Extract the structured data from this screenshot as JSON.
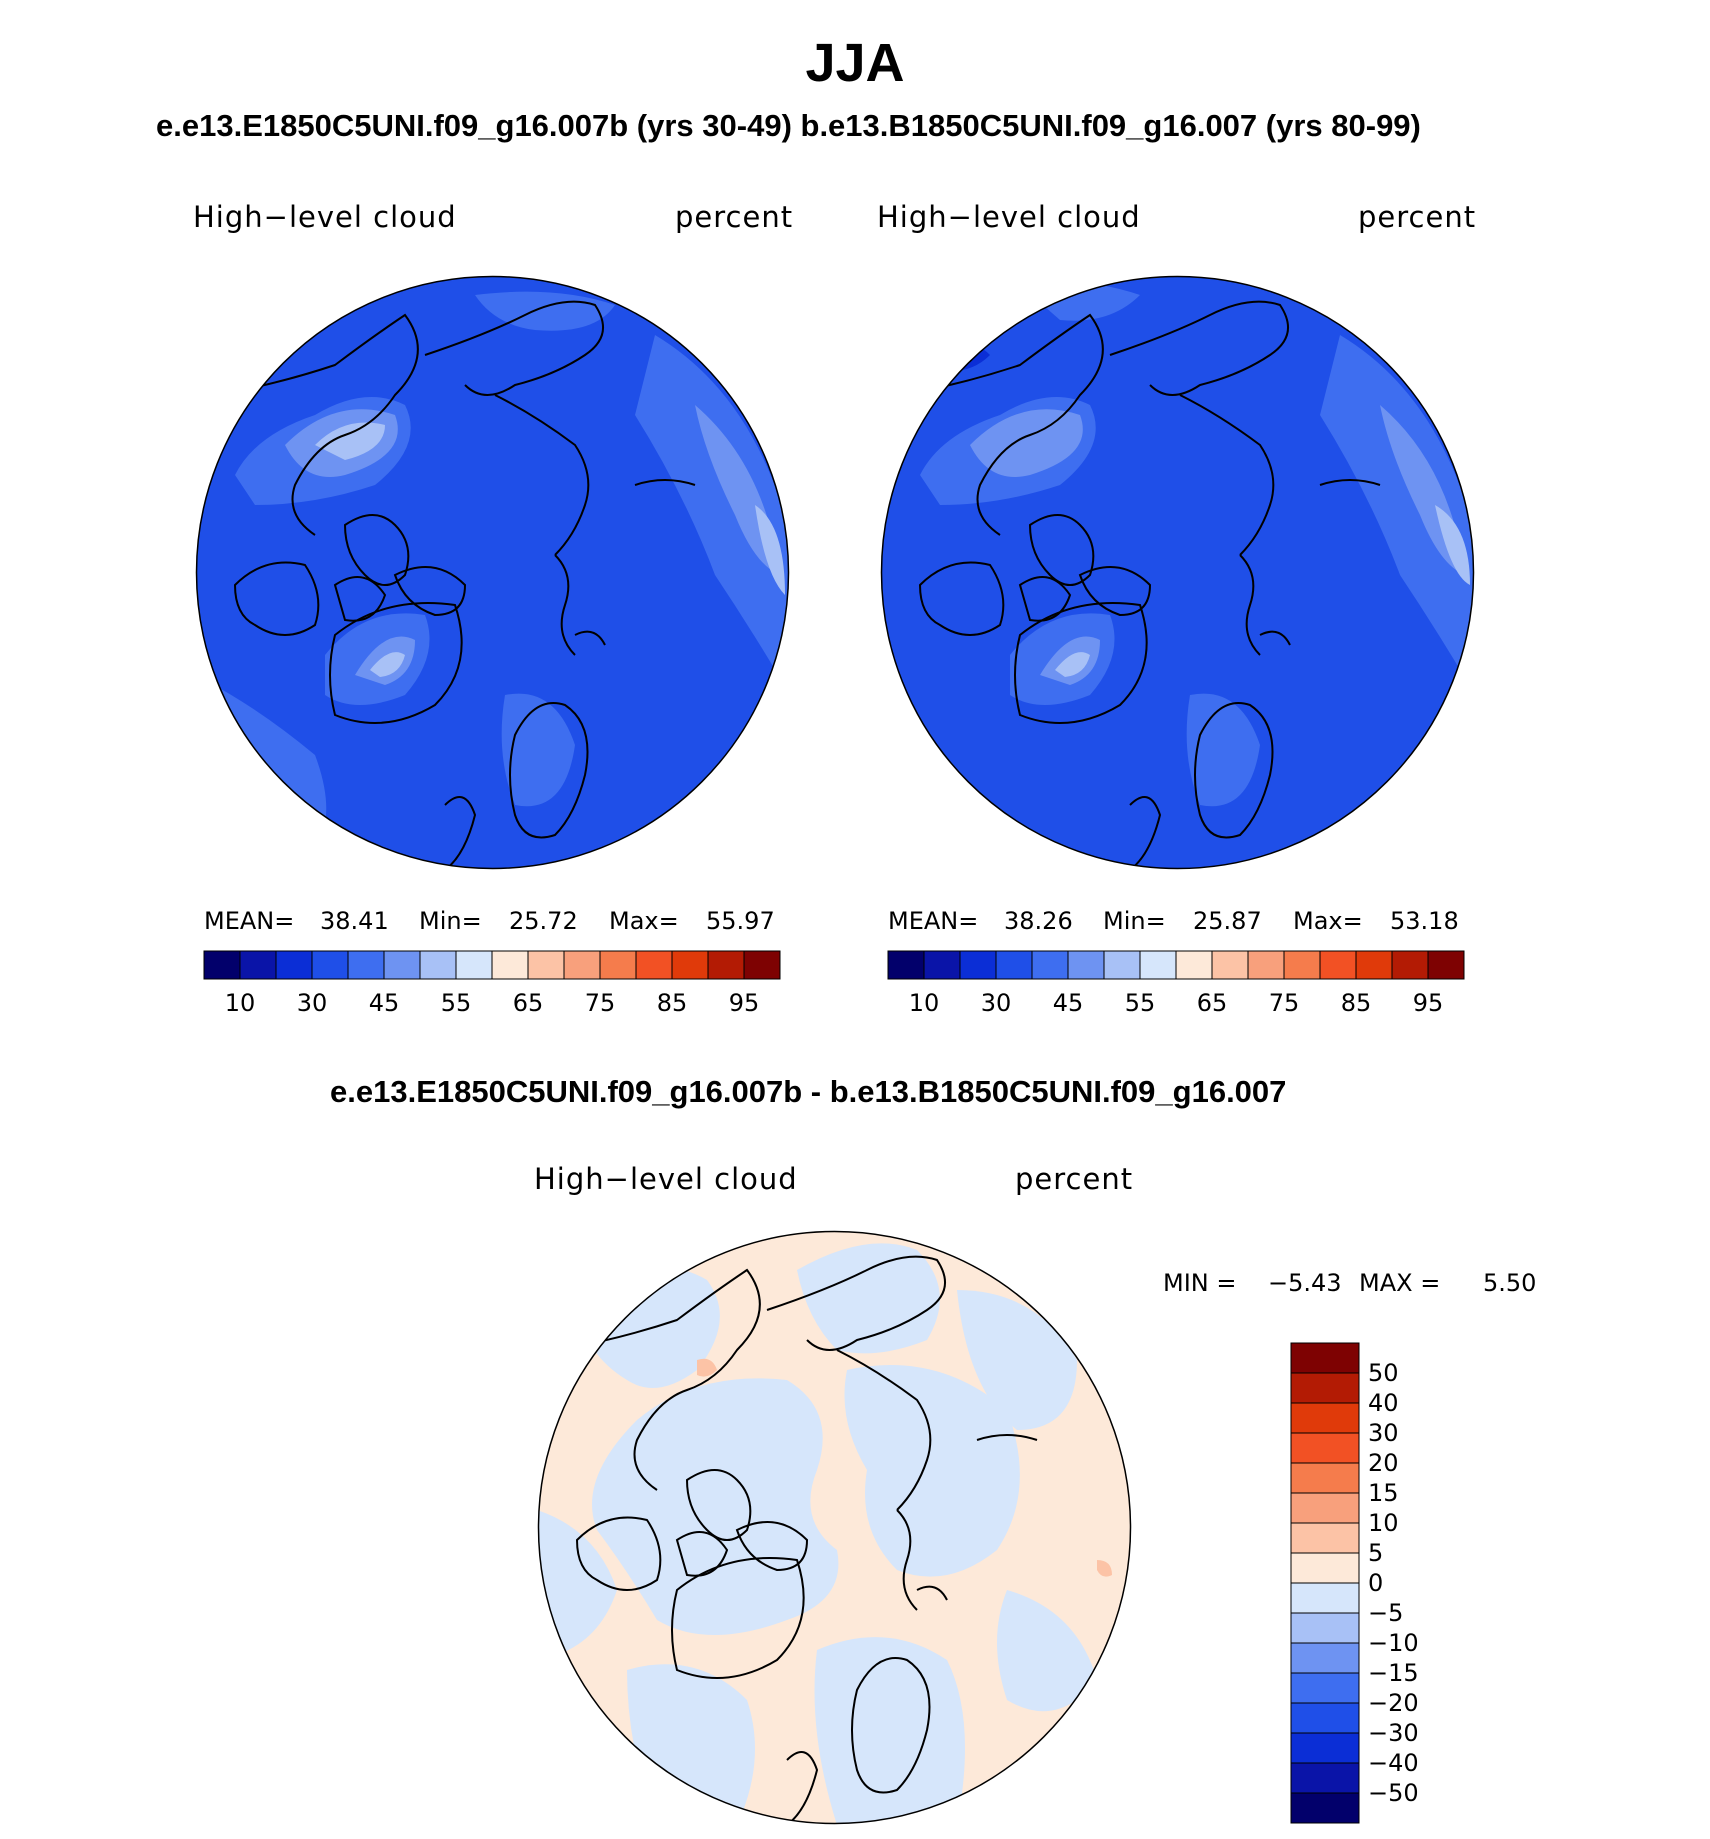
{
  "chart_data": {
    "type": "heatmap",
    "title": "JJA",
    "subtitle": "e.e13.E1850C5UNI.f09_g16.007b (yrs 30-49)  b.e13.B1850C5UNI.f09_g16.007 (yrs 80-99)",
    "diff_title": "e.e13.E1850C5UNI.f09_g16.007b - b.e13.B1850C5UNI.f09_g16.007",
    "panels": [
      {
        "variable": "High−level cloud",
        "units": "percent",
        "mean_label": "MEAN=",
        "mean": "38.41",
        "min_label": "Min=",
        "min": "25.72",
        "max_label": "Max=",
        "max": "55.97"
      },
      {
        "variable": "High−level cloud",
        "units": "percent",
        "mean_label": "MEAN=",
        "mean": "38.26",
        "min_label": "Min=",
        "min": "25.87",
        "max_label": "Max=",
        "max": "53.18"
      }
    ],
    "diff_panel": {
      "variable": "High−level cloud",
      "units": "percent",
      "min_label": "MIN =",
      "min": "−5.43",
      "max_label": "MAX =",
      "max": "5.50"
    },
    "colorbar": {
      "colors": [
        "#02006b",
        "#0a14a8",
        "#0b2ed6",
        "#1f4fe8",
        "#3e6ef0",
        "#6e93f2",
        "#a8c1f6",
        "#d6e6fb",
        "#fde9d9",
        "#fcc3a6",
        "#f8a07c",
        "#f57c4c",
        "#f25124",
        "#e03a0a",
        "#b31b04",
        "#7e0202"
      ],
      "ticks": [
        "10",
        "30",
        "45",
        "55",
        "65",
        "75",
        "85",
        "95"
      ]
    },
    "diff_colorbar": {
      "colors": [
        "#7e0202",
        "#b31b04",
        "#e03a0a",
        "#f25124",
        "#f57c4c",
        "#f8a07c",
        "#fcc3a6",
        "#fde9d9",
        "#d6e6fb",
        "#a8c1f6",
        "#6e93f2",
        "#3e6ef0",
        "#1f4fe8",
        "#0b2ed6",
        "#0a14a8",
        "#02006b"
      ],
      "ticks": [
        "50",
        "40",
        "30",
        "20",
        "15",
        "10",
        "5",
        "0",
        "−5",
        "−10",
        "−15",
        "−20",
        "−30",
        "−40",
        "−50"
      ]
    }
  }
}
